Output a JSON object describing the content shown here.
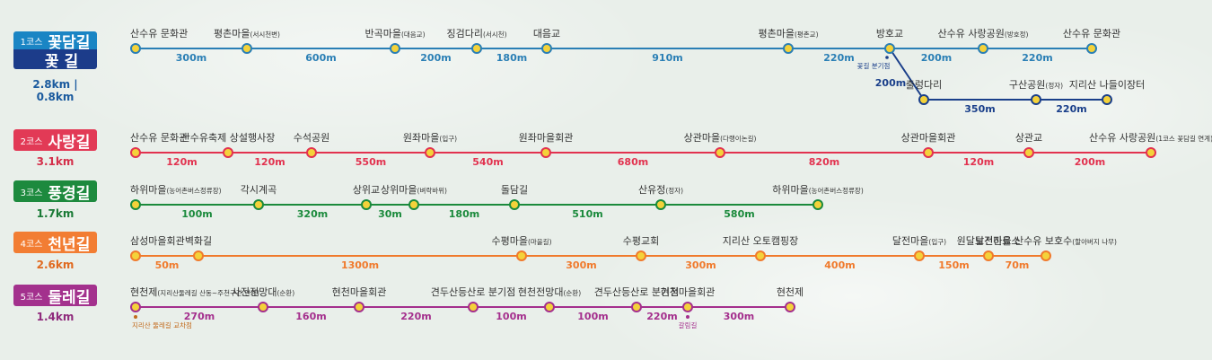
{
  "courses": [
    {
      "id": "c1",
      "color": "#2a7fb5",
      "badge": {
        "num": "1코스",
        "name": "꽃담길"
      },
      "badge2": {
        "name": "꽃 길"
      },
      "distance": "2.8km | 0.8km",
      "stations": [
        {
          "name": "산수유 문화관",
          "small": ""
        },
        {
          "name": "평촌마을",
          "small": "(서시천변)"
        },
        {
          "name": "반곡마을",
          "small": "(대음교)"
        },
        {
          "name": "징검다리",
          "small": "(서시천)"
        },
        {
          "name": "대음교",
          "small": ""
        },
        {
          "name": "평촌마을",
          "small": "(평촌교)"
        },
        {
          "name": "방호교",
          "small": ""
        },
        {
          "name": "산수유 사랑공원",
          "small": "(방호정)"
        },
        {
          "name": "산수유 문화관",
          "small": ""
        }
      ],
      "segments": [
        "300m",
        "600m",
        "200m",
        "180m",
        "910m",
        "220m",
        "200m",
        "220m"
      ],
      "branch_note": "꽃길 분기점",
      "branch": {
        "color": "#1a3f8a",
        "first_segment": "200m",
        "stations": [
          {
            "name": "출렁다리",
            "small": ""
          },
          {
            "name": "구산공원",
            "small": "(정자)"
          },
          {
            "name": "지리산 나들이장터",
            "small": ""
          }
        ],
        "segments": [
          "350m",
          "220m"
        ]
      }
    },
    {
      "id": "c2",
      "color": "#e2324f",
      "badge": {
        "num": "2코스",
        "name": "사랑길"
      },
      "distance": "3.1km",
      "stations": [
        {
          "name": "산수유 문화관",
          "small": ""
        },
        {
          "name": "산수유축제 상설행사장",
          "small": ""
        },
        {
          "name": "수석공원",
          "small": ""
        },
        {
          "name": "원좌마을",
          "small": "(입구)"
        },
        {
          "name": "원좌마을회관",
          "small": ""
        },
        {
          "name": "상관마을",
          "small": "(다랭이논길)"
        },
        {
          "name": "상관마을회관",
          "small": ""
        },
        {
          "name": "상관교",
          "small": ""
        },
        {
          "name": "산수유 사랑공원",
          "small": "(1코스 꽃담길 연계)"
        }
      ],
      "segments": [
        "120m",
        "120m",
        "550m",
        "540m",
        "680m",
        "820m",
        "120m",
        "200m"
      ]
    },
    {
      "id": "c3",
      "color": "#1b8a3c",
      "badge": {
        "num": "3코스",
        "name": "풍경길"
      },
      "distance": "1.7km",
      "stations": [
        {
          "name": "하위마을",
          "small": "(농어촌버스정류장)"
        },
        {
          "name": "각시계곡",
          "small": ""
        },
        {
          "name": "상위교",
          "small": ""
        },
        {
          "name": "상위마을",
          "small": "(벼락바위)"
        },
        {
          "name": "돌담길",
          "small": ""
        },
        {
          "name": "산유정",
          "small": "(정자)"
        },
        {
          "name": "하위마을",
          "small": "(농어촌버스정류장)"
        }
      ],
      "segments": [
        "100m",
        "320m",
        "30m",
        "180m",
        "510m",
        "580m"
      ]
    },
    {
      "id": "c4",
      "color": "#f07a2c",
      "badge": {
        "num": "4코스",
        "name": "천년길"
      },
      "distance": "2.6km",
      "stations": [
        {
          "name": "삼성마을회관",
          "small": ""
        },
        {
          "name": "벽화길",
          "small": ""
        },
        {
          "name": "수평마을",
          "small": "(마을길)"
        },
        {
          "name": "수평교회",
          "small": ""
        },
        {
          "name": "지리산 오토캠핑장",
          "small": ""
        },
        {
          "name": "달전마을",
          "small": "(입구)"
        },
        {
          "name": "원달보건진료소",
          "small": ""
        },
        {
          "name": "달전마을 산수유 보호수",
          "small": "(할아버지 나무)"
        }
      ],
      "segments": [
        "50m",
        "1300m",
        "300m",
        "300m",
        "400m",
        "150m",
        "70m"
      ]
    },
    {
      "id": "c5",
      "color": "#a42f8d",
      "badge": {
        "num": "5코스",
        "name": "둘레길"
      },
      "distance": "1.4km",
      "stations": [
        {
          "name": "현천제",
          "small": "(지리산둘레길 산동~주천구간 연계)"
        },
        {
          "name": "사진전망대",
          "small": "(순환)"
        },
        {
          "name": "현천마을회관",
          "small": ""
        },
        {
          "name": "견두산등산로 분기점",
          "small": ""
        },
        {
          "name": "현천전망대",
          "small": "(순환)"
        },
        {
          "name": "견두산등산로 분기점",
          "small": ""
        },
        {
          "name": "현천마을회관",
          "small": ""
        },
        {
          "name": "현천제",
          "small": ""
        }
      ],
      "segments": [
        "270m",
        "160m",
        "220m",
        "100m",
        "100m",
        "220m",
        "300m"
      ],
      "notes": [
        "지리산 둘레길 교차점",
        "갈림길"
      ]
    }
  ]
}
